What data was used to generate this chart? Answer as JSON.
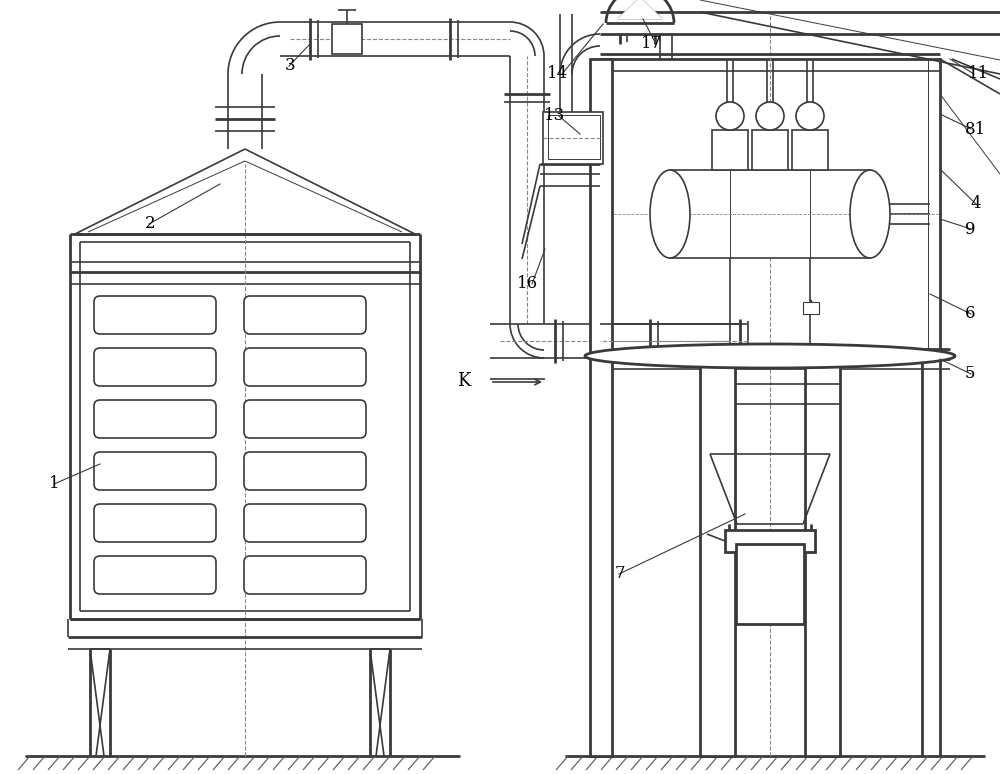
{
  "bg_color": "#ffffff",
  "lc": "#3a3a3a",
  "dash_color": "#888888",
  "lw": 1.2,
  "lw2": 2.0,
  "lw3": 0.7,
  "label_fs": 12
}
